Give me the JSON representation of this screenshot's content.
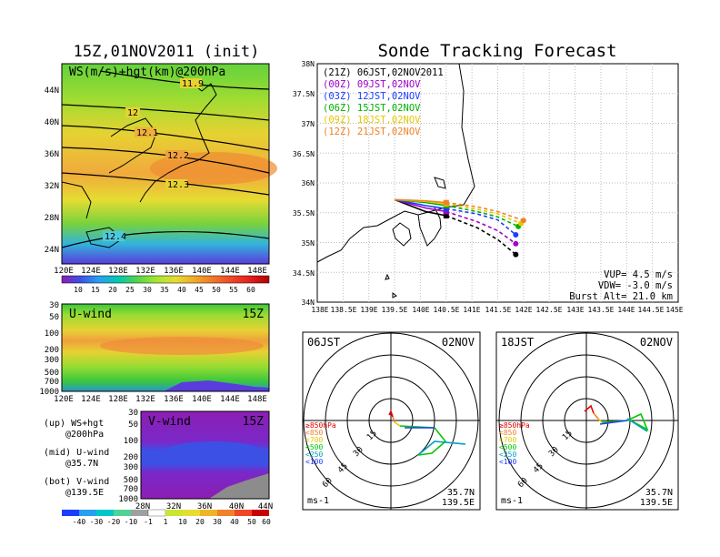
{
  "left_title": "15Z,01NOV2011 (init)",
  "right_title": "Sonde Tracking Forecast",
  "map_panel": {
    "label": "WS(m/s)+hgt(km)@200hPa",
    "lat_labels": [
      "44N",
      "40N",
      "36N",
      "32N",
      "28N",
      "24N"
    ],
    "lon_labels": [
      "120E",
      "124E",
      "128E",
      "132E",
      "136E",
      "140E",
      "144E",
      "148E"
    ],
    "contour_labels": [
      "11.9",
      "12",
      "12.1",
      "12.2",
      "12.3",
      "12.4"
    ]
  },
  "ws_colorbar": {
    "labels": [
      "10",
      "15",
      "20",
      "25",
      "30",
      "35",
      "40",
      "45",
      "50",
      "55",
      "60"
    ]
  },
  "u_panel": {
    "label": "U-wind",
    "time": "15Z",
    "y_labels": [
      "30",
      "50",
      "100",
      "200",
      "300",
      "500",
      "700",
      "1000"
    ],
    "x_labels": [
      "120E",
      "124E",
      "128E",
      "132E",
      "136E",
      "140E",
      "144E",
      "148E"
    ]
  },
  "v_panel": {
    "label": "V-wind",
    "time": "15Z",
    "y_labels": [
      "30",
      "50",
      "100",
      "200",
      "300",
      "500",
      "700",
      "1000"
    ],
    "x_labels": [
      "28N",
      "32N",
      "36N",
      "40N",
      "44N"
    ]
  },
  "notes": [
    {
      "top": "(up) WS+hgt",
      "bottom": "@200hPa"
    },
    {
      "top": "(mid) U-wind",
      "bottom": "@35.7N"
    },
    {
      "top": "(bot) V-wind",
      "bottom": "@139.5E"
    }
  ],
  "wind_colorbar": {
    "labels": [
      "-40",
      "-30",
      "-20",
      "-10",
      "-1",
      "1",
      "10",
      "20",
      "30",
      "40",
      "50",
      "60"
    ]
  },
  "track_panel": {
    "y_labels": [
      "38N",
      "37.5N",
      "37N",
      "36.5N",
      "36N",
      "35.5N",
      "35N",
      "34.5N",
      "34N"
    ],
    "x_labels": [
      "138E",
      "138.5E",
      "139E",
      "139.5E",
      "140E",
      "140.5E",
      "141E",
      "141.5E",
      "142E",
      "142.5E",
      "143E",
      "143.5E",
      "144E",
      "144.5E",
      "145E"
    ],
    "legend": [
      {
        "text": "(21Z) 06JST,02NOV2011",
        "color": "#000000"
      },
      {
        "text": "(00Z) 09JST,02NOV",
        "color": "#a000c8"
      },
      {
        "text": "(03Z) 12JST,02NOV",
        "color": "#1e3cff"
      },
      {
        "text": "(06Z) 15JST,02NOV",
        "color": "#00b000"
      },
      {
        "text": "(09Z) 18JST,02NOV",
        "color": "#e6c800"
      },
      {
        "text": "(12Z) 21JST,02NOV",
        "color": "#f08228"
      }
    ],
    "params": [
      "VUP= 4.5 m/s",
      "VDW= -3.0 m/s",
      "Burst Alt= 21.0 km"
    ]
  },
  "hodo_left": {
    "time": "06JST",
    "date": "02NOV",
    "ring_labels": [
      "15",
      "30",
      "45",
      "60"
    ],
    "unit": "ms-1",
    "lat": "35.7N",
    "lon": "139.5E",
    "levels": [
      {
        "text": "≥850hPa",
        "color": "#e60000"
      },
      {
        "text": "<850",
        "color": "#f08228"
      },
      {
        "text": "<700",
        "color": "#e6c800"
      },
      {
        "text": "<500",
        "color": "#00c800"
      },
      {
        "text": "<250",
        "color": "#00a0c8"
      },
      {
        "text": "<100",
        "color": "#1e3cff"
      }
    ]
  },
  "hodo_right": {
    "time": "18JST",
    "date": "02NOV",
    "ring_labels": [
      "15",
      "30",
      "45",
      "60"
    ],
    "unit": "ms-1",
    "lat": "35.7N",
    "lon": "139.5E",
    "levels": [
      {
        "text": "≥850hPa",
        "color": "#e60000"
      },
      {
        "text": "<850",
        "color": "#f08228"
      },
      {
        "text": "<700",
        "color": "#e6c800"
      },
      {
        "text": "<500",
        "color": "#00c800"
      },
      {
        "text": "<250",
        "color": "#00a0c8"
      },
      {
        "text": "<100",
        "color": "#1e3cff"
      }
    ]
  },
  "chart_data": {
    "type": "line",
    "x_unit": "longitude (deg E)",
    "y_unit": "latitude (deg N)",
    "xlim": [
      138,
      145
    ],
    "ylim": [
      34,
      38
    ],
    "series": [
      {
        "name": "(21Z) 06JST,02NOV2011",
        "color": "#000000",
        "points": [
          [
            139.5,
            35.72
          ],
          [
            140.1,
            35.52
          ],
          [
            140.5,
            35.45
          ],
          [
            141.1,
            35.25
          ],
          [
            141.5,
            35.05
          ],
          [
            141.85,
            34.8
          ]
        ]
      },
      {
        "name": "(00Z) 09JST,02NOV",
        "color": "#a000c8",
        "points": [
          [
            139.5,
            35.72
          ],
          [
            140.1,
            35.58
          ],
          [
            140.5,
            35.52
          ],
          [
            141.1,
            35.35
          ],
          [
            141.5,
            35.2
          ],
          [
            141.85,
            34.98
          ]
        ]
      },
      {
        "name": "(03Z) 12JST,02NOV",
        "color": "#1e3cff",
        "points": [
          [
            139.5,
            35.72
          ],
          [
            140.1,
            35.62
          ],
          [
            140.5,
            35.57
          ],
          [
            141.1,
            35.48
          ],
          [
            141.5,
            35.38
          ],
          [
            141.85,
            35.13
          ]
        ]
      },
      {
        "name": "(06Z) 15JST,02NOV",
        "color": "#00b000",
        "points": [
          [
            139.5,
            35.72
          ],
          [
            140.1,
            35.67
          ],
          [
            140.5,
            35.62
          ],
          [
            141.1,
            35.52
          ],
          [
            141.5,
            35.43
          ],
          [
            141.9,
            35.27
          ]
        ]
      },
      {
        "name": "(09Z) 18JST,02NOV",
        "color": "#e6c800",
        "points": [
          [
            139.5,
            35.72
          ],
          [
            140.1,
            35.69
          ],
          [
            140.5,
            35.65
          ],
          [
            141.1,
            35.56
          ],
          [
            141.5,
            35.48
          ],
          [
            141.95,
            35.32
          ]
        ]
      },
      {
        "name": "(12Z) 21JST,02NOV",
        "color": "#f08228",
        "points": [
          [
            139.5,
            35.72
          ],
          [
            140.1,
            35.7
          ],
          [
            140.5,
            35.67
          ],
          [
            141.1,
            35.6
          ],
          [
            141.5,
            35.52
          ],
          [
            142.0,
            35.37
          ]
        ]
      }
    ]
  }
}
